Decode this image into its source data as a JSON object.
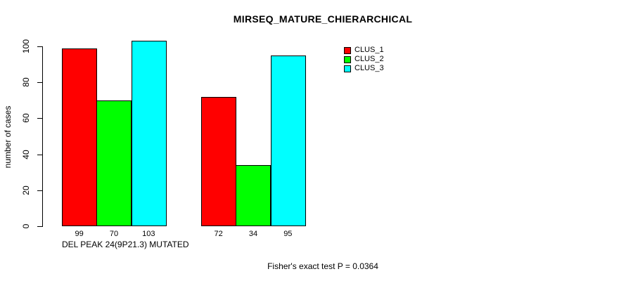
{
  "figure": {
    "background": "#FFFFFF",
    "text_color": "#000000"
  },
  "chart_data": {
    "type": "bar",
    "title": "MIRSEQ_MATURE_CHIERARCHICAL",
    "ylabel": "number of cases",
    "xlabel": "",
    "categories": [
      "DEL PEAK 24(9P21.3) MUTATED",
      ""
    ],
    "series": [
      {
        "name": "CLUS_1",
        "color": "#FF0000",
        "values": [
          99,
          72
        ]
      },
      {
        "name": "CLUS_2",
        "color": "#00FF00",
        "values": [
          70,
          34
        ]
      },
      {
        "name": "CLUS_3",
        "color": "#00FFFF",
        "values": [
          103,
          95
        ]
      }
    ],
    "ylim": [
      0,
      100
    ],
    "yticks": [
      0,
      20,
      40,
      60,
      80,
      100
    ],
    "grid": false,
    "bar_border_color": "#000000",
    "legend": {
      "position": "top-right",
      "entries": [
        "CLUS_1",
        "CLUS_2",
        "CLUS_3"
      ],
      "colors": [
        "#FF0000",
        "#00FF00",
        "#00FFFF"
      ]
    },
    "annotation": "Fisher's exact test P = 0.0364"
  }
}
